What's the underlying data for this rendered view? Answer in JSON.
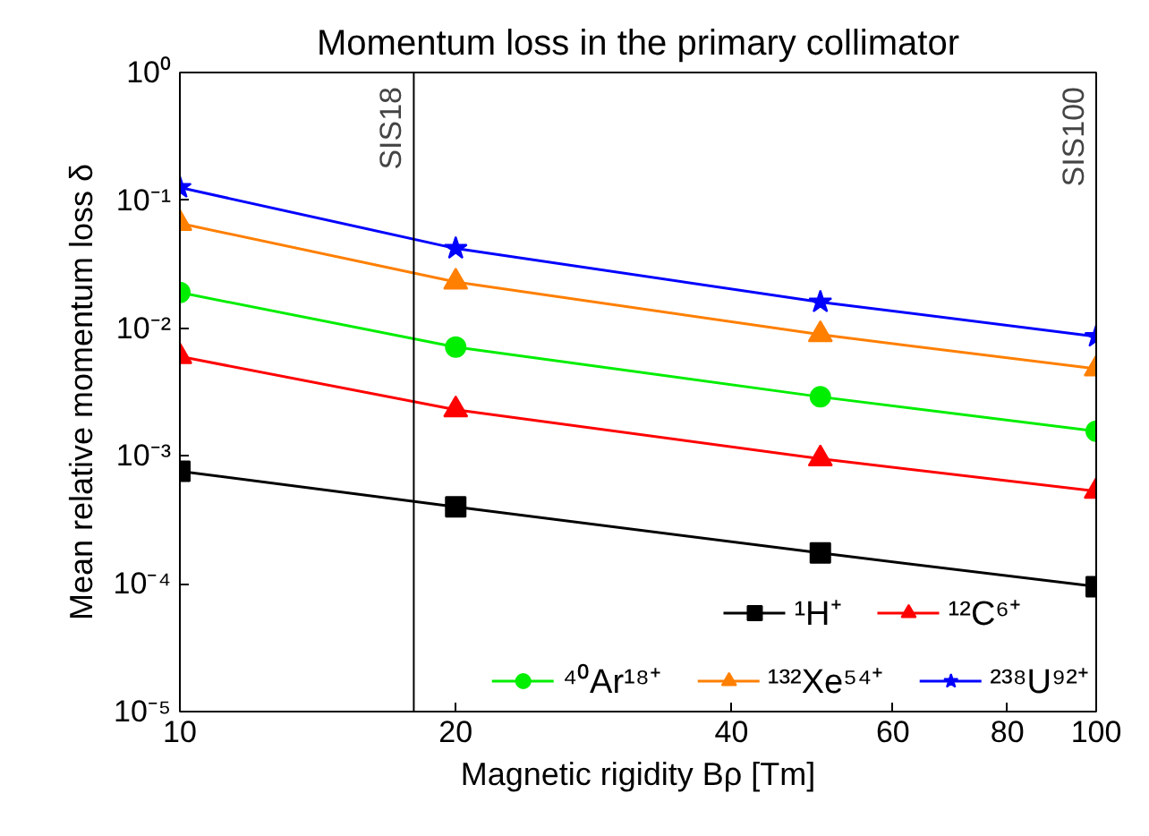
{
  "chart_data": {
    "type": "line",
    "title": "Momentum loss in the primary collimator",
    "xlabel": "Magnetic rigidity Bρ [Tm]",
    "ylabel": "Mean relative momentum loss δ",
    "log": "xy",
    "grid": false,
    "legend": "bottom right",
    "line_style": "solid",
    "x": [
      10,
      20,
      50,
      100
    ],
    "xlim": [
      10,
      100
    ],
    "xticks": [
      10,
      20,
      40,
      60,
      80,
      100
    ],
    "ylim": [
      1e-05,
      1
    ],
    "yticks": [
      {
        "value": 1e-05,
        "label": "10⁻⁵"
      },
      {
        "value": 0.0001,
        "label": "10⁻⁴"
      },
      {
        "value": 0.001,
        "label": "10⁻³"
      },
      {
        "value": 0.01,
        "label": "10⁻²"
      },
      {
        "value": 0.1,
        "label": "10⁻¹"
      },
      {
        "value": 1,
        "label": "10⁰"
      }
    ],
    "series": [
      {
        "name": "¹H⁺",
        "color": "#000000",
        "marker": "square",
        "values": [
          0.00076,
          0.0004,
          0.000174,
          9.5e-05
        ]
      },
      {
        "name": "¹²C⁶⁺",
        "color": "#ff0000",
        "marker": "triangle",
        "values": [
          0.006,
          0.0023,
          0.00095,
          0.00053
        ]
      },
      {
        "name": "⁴⁰Ar¹⁸⁺",
        "color": "#00ee00",
        "marker": "circle",
        "values": [
          0.019,
          0.0071,
          0.0029,
          0.00156
        ]
      },
      {
        "name": "¹³²Xe⁵⁴⁺",
        "color": "#ff7f00",
        "marker": "triangle",
        "values": [
          0.066,
          0.023,
          0.0089,
          0.0048
        ]
      },
      {
        "name": "²³⁸U⁹²⁺",
        "color": "#0000ff",
        "marker": "star",
        "values": [
          0.126,
          0.042,
          0.016,
          0.0086
        ]
      }
    ],
    "ref_lines": [
      {
        "axis": "x",
        "value": 18,
        "label": "SIS18",
        "color": "#000000"
      },
      {
        "axis": "x",
        "value": 100,
        "label": "SIS100",
        "color": "#000000"
      }
    ]
  }
}
